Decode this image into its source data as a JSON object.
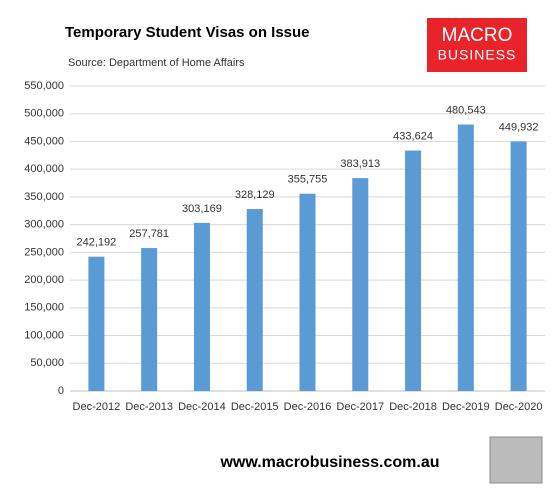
{
  "chart_data": {
    "type": "bar",
    "title": "Temporary Student Visas on Issue",
    "subtitle": "Source: Department of Home Affairs",
    "categories": [
      "Dec-2012",
      "Dec-2013",
      "Dec-2014",
      "Dec-2015",
      "Dec-2016",
      "Dec-2017",
      "Dec-2018",
      "Dec-2019",
      "Dec-2020"
    ],
    "values": [
      242192,
      257781,
      303169,
      328129,
      355755,
      383913,
      433624,
      480543,
      449932
    ],
    "value_labels": [
      "242,192",
      "257,781",
      "303,169",
      "328,129",
      "355,755",
      "383,913",
      "433,624",
      "480,543",
      "449,932"
    ],
    "color": "#5b9bd5",
    "ylim": [
      0,
      550000
    ],
    "yticks": [
      0,
      {
        "value": 50000,
        "label": "50,000"
      },
      {
        "value": 100000,
        "label": "100,000"
      },
      {
        "value": 150000,
        "label": "150,000"
      },
      {
        "value": 200000,
        "label": "200,000"
      },
      {
        "value": 250000,
        "label": "250,000"
      },
      {
        "value": 300000,
        "label": "300,000"
      },
      {
        "value": 350000,
        "label": "350,000"
      },
      {
        "value": 400000,
        "label": "400,000"
      },
      {
        "value": 450000,
        "label": "450,000"
      },
      {
        "value": 500000,
        "label": "500,000"
      },
      {
        "value": 550000,
        "label": "550,000"
      }
    ],
    "grid": true
  },
  "logo": {
    "line1": "MACRO",
    "line2": "BUSINESS"
  },
  "footer": "www.macrobusiness.com.au"
}
